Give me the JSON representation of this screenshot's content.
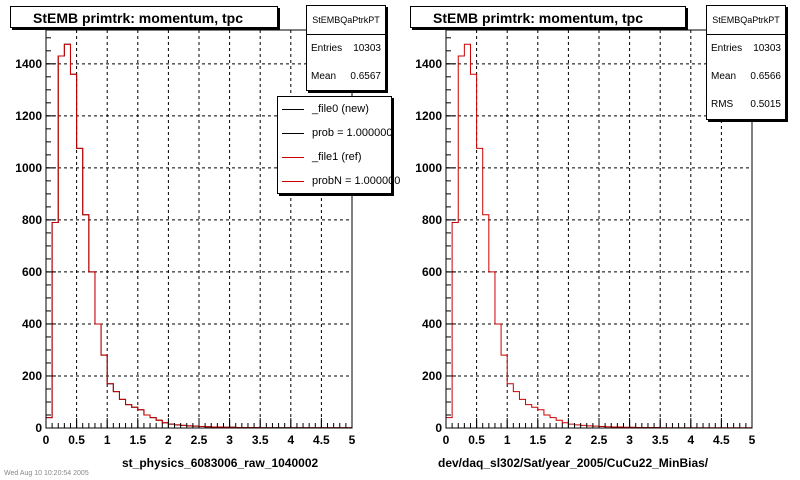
{
  "footer_text": "Wed Aug 10 10:20:54 2005",
  "chart_data": [
    {
      "type": "histogram",
      "title": "StEMB primtrk: momentum, tpc",
      "xlabel": "st_physics_6083006_raw_1040002",
      "ylabel": "",
      "xlim": [
        0,
        5
      ],
      "ylim": [
        0,
        1530
      ],
      "xticks": [
        "0",
        "0.5",
        "1",
        "1.5",
        "2",
        "2.5",
        "3",
        "3.5",
        "4",
        "4.5",
        "5"
      ],
      "yticks": [
        "0",
        "200",
        "400",
        "600",
        "800",
        "1000",
        "1200",
        "1400"
      ],
      "grid": true,
      "bin_width": 0.1,
      "bin_start": 0,
      "series": [
        {
          "values": [
            40,
            790,
            1430,
            1475,
            1360,
            1075,
            820,
            600,
            400,
            280,
            170,
            140,
            110,
            90,
            80,
            70,
            50,
            40,
            30,
            20,
            15,
            12,
            10,
            8,
            7,
            6,
            5,
            4,
            4,
            3,
            3,
            2,
            2,
            2,
            2,
            1,
            1,
            1,
            1,
            1,
            1,
            1,
            1,
            1,
            1,
            1,
            1,
            1,
            1,
            1
          ],
          "color": "#000000"
        },
        {
          "values": [
            40,
            790,
            1430,
            1475,
            1360,
            1075,
            820,
            600,
            400,
            280,
            170,
            140,
            110,
            90,
            80,
            70,
            50,
            40,
            30,
            20,
            15,
            12,
            10,
            8,
            7,
            6,
            5,
            4,
            4,
            3,
            3,
            2,
            2,
            2,
            2,
            1,
            1,
            1,
            1,
            1,
            1,
            1,
            1,
            1,
            1,
            1,
            1,
            1,
            1,
            1
          ],
          "color": "#cc0000"
        }
      ],
      "stats": {
        "name": "StEMBQaPtrkPT",
        "entries_label": "Entries",
        "entries": "10303",
        "mean_label": "Mean",
        "mean": "0.6567"
      },
      "legend": {
        "entries": [
          {
            "label": "_file0 (new)",
            "color": "#000000"
          },
          {
            "label": "prob = 1.000000",
            "color": "#000000"
          },
          {
            "label": "_file1 (ref)",
            "color": "#cc0000"
          },
          {
            "label": "probN = 1.000000",
            "color": "#cc0000"
          }
        ]
      }
    },
    {
      "type": "histogram",
      "title": "StEMB primtrk: momentum, tpc",
      "xlabel": "dev/daq_sl302/Sat/year_2005/CuCu22_MinBias/",
      "ylabel": "",
      "xlim": [
        0,
        5
      ],
      "ylim": [
        0,
        1530
      ],
      "xticks": [
        "0",
        "0.5",
        "1",
        "1.5",
        "2",
        "2.5",
        "3",
        "3.5",
        "4",
        "4.5",
        "5"
      ],
      "yticks": [
        "0",
        "200",
        "400",
        "600",
        "800",
        "1000",
        "1200",
        "1400"
      ],
      "grid": true,
      "bin_width": 0.1,
      "bin_start": 0,
      "series": [
        {
          "values": [
            40,
            790,
            1430,
            1475,
            1360,
            1075,
            820,
            600,
            400,
            280,
            170,
            140,
            110,
            90,
            80,
            70,
            50,
            40,
            30,
            20,
            15,
            12,
            10,
            8,
            7,
            6,
            5,
            4,
            4,
            3,
            3,
            2,
            2,
            2,
            2,
            1,
            1,
            1,
            1,
            1,
            1,
            1,
            1,
            1,
            1,
            1,
            1,
            1,
            1,
            1
          ],
          "color": "#cc0000"
        }
      ],
      "stats": {
        "name": "StEMBQaPtrkPT",
        "entries_label": "Entries",
        "entries": "10303",
        "mean_label": "Mean",
        "mean": "0.6566",
        "rms_label": "RMS",
        "rms": "0.5015"
      }
    }
  ]
}
